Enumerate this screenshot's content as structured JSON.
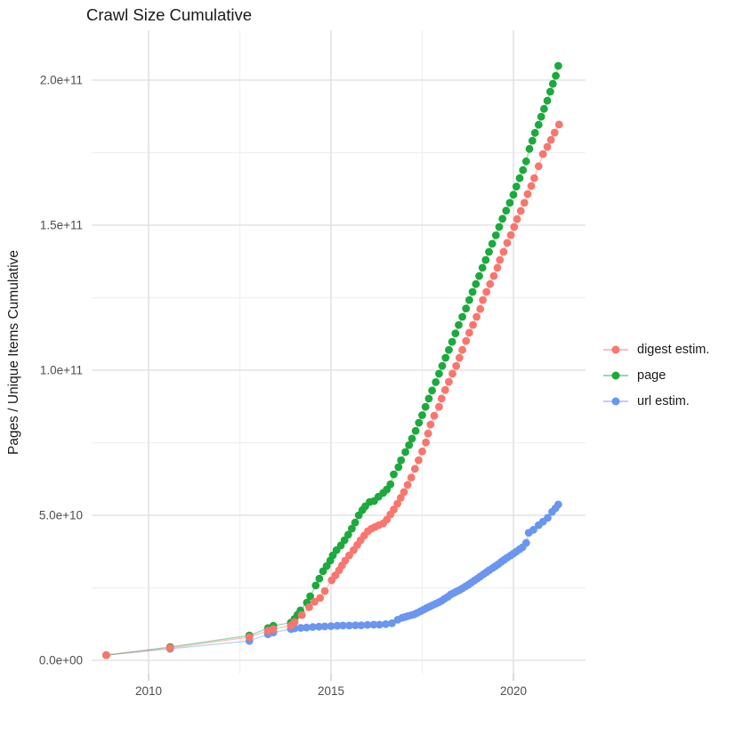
{
  "title": "Crawl Size Cumulative",
  "y_axis": {
    "title": "Pages / Unique Items Cumulative",
    "tick_labels": [
      "0.0e+00",
      "5.0e+10",
      "1.0e+11",
      "1.5e+11",
      "2.0e+11"
    ],
    "tick_values_e9": [
      0,
      50,
      100,
      150,
      200
    ]
  },
  "x_axis": {
    "tick_labels": [
      "2010",
      "2015",
      "2020"
    ],
    "tick_values": [
      2010,
      2015,
      2020
    ]
  },
  "legend": {
    "position": "right",
    "items": [
      {
        "label": "digest estim.",
        "color": "#F8766D"
      },
      {
        "label": "page",
        "color": "#1CA93D"
      },
      {
        "label": "url estim.",
        "color": "#6A96F0"
      }
    ]
  },
  "colors": {
    "grid_major": "#e3e3e3",
    "grid_minor": "#f0f0f0",
    "tick_mark": "#d2d2d2",
    "tick_text": "#4d4d4d",
    "text": "#1a1a1a",
    "background": "#ffffff"
  },
  "chart_data": {
    "type": "scatter",
    "title": "Crawl Size Cumulative",
    "xlabel": "",
    "ylabel": "Pages / Unique Items Cumulative",
    "value_unit": "items, values in billions (1e9)",
    "x_range": [
      2008.2,
      2022.0
    ],
    "y_range_e9": [
      -5,
      217
    ],
    "grid": true,
    "legend_position": "right",
    "series": [
      {
        "name": "digest estim.",
        "color": "#F8766D",
        "points": [
          [
            2008.84,
            1.8
          ],
          [
            2010.59,
            4.3
          ],
          [
            2012.76,
            8.0
          ],
          [
            2013.27,
            10.2
          ],
          [
            2013.42,
            10.8
          ],
          [
            2013.9,
            12.0
          ],
          [
            2014.0,
            13.2
          ],
          [
            2014.2,
            15.6
          ],
          [
            2014.4,
            18.3
          ],
          [
            2014.55,
            20.2
          ],
          [
            2014.7,
            21.5
          ],
          [
            2014.83,
            23.9
          ],
          [
            2015.02,
            27.6
          ],
          [
            2015.12,
            29.3
          ],
          [
            2015.22,
            31.0
          ],
          [
            2015.3,
            32.7
          ],
          [
            2015.39,
            34.4
          ],
          [
            2015.5,
            36.2
          ],
          [
            2015.62,
            38.0
          ],
          [
            2015.72,
            39.8
          ],
          [
            2015.81,
            41.4
          ],
          [
            2015.91,
            43.0
          ],
          [
            2016.01,
            44.5
          ],
          [
            2016.11,
            45.4
          ],
          [
            2016.21,
            46.0
          ],
          [
            2016.31,
            46.6
          ],
          [
            2016.43,
            47.2
          ],
          [
            2016.53,
            48.5
          ],
          [
            2016.63,
            50.3
          ],
          [
            2016.72,
            52.0
          ],
          [
            2016.82,
            54.0
          ],
          [
            2016.91,
            56.0
          ],
          [
            2017.0,
            58.0
          ],
          [
            2017.1,
            60.5
          ],
          [
            2017.2,
            63.0
          ],
          [
            2017.3,
            66.0
          ],
          [
            2017.4,
            69.0
          ],
          [
            2017.5,
            72.0
          ],
          [
            2017.6,
            75.1
          ],
          [
            2017.66,
            78.2
          ],
          [
            2017.73,
            81.3
          ],
          [
            2017.83,
            84.3
          ],
          [
            2017.96,
            87.4
          ],
          [
            2018.03,
            90.2
          ],
          [
            2018.13,
            93.2
          ],
          [
            2018.23,
            96.0
          ],
          [
            2018.33,
            98.8
          ],
          [
            2018.43,
            101.5
          ],
          [
            2018.52,
            104.3
          ],
          [
            2018.6,
            107.0
          ],
          [
            2018.7,
            110.1
          ],
          [
            2018.79,
            112.9
          ],
          [
            2018.89,
            115.6
          ],
          [
            2018.99,
            118.4
          ],
          [
            2019.09,
            121.1
          ],
          [
            2019.16,
            124.2
          ],
          [
            2019.26,
            127.0
          ],
          [
            2019.36,
            129.7
          ],
          [
            2019.46,
            132.5
          ],
          [
            2019.56,
            135.3
          ],
          [
            2019.63,
            138.0
          ],
          [
            2019.73,
            140.8
          ],
          [
            2019.83,
            143.9
          ],
          [
            2019.93,
            146.6
          ],
          [
            2020.02,
            149.4
          ],
          [
            2020.1,
            152.1
          ],
          [
            2020.2,
            154.9
          ],
          [
            2020.3,
            157.7
          ],
          [
            2020.39,
            160.7
          ],
          [
            2020.49,
            163.5
          ],
          [
            2020.57,
            166.2
          ],
          [
            2020.69,
            170.3
          ],
          [
            2020.81,
            174.5
          ],
          [
            2020.93,
            177.0
          ],
          [
            2021.03,
            179.4
          ],
          [
            2021.13,
            181.9
          ],
          [
            2021.25,
            184.7
          ]
        ]
      },
      {
        "name": "page",
        "color": "#1CA93D",
        "points": [
          [
            2008.84,
            1.8
          ],
          [
            2010.59,
            4.6
          ],
          [
            2012.76,
            8.6
          ],
          [
            2013.27,
            11.1
          ],
          [
            2013.42,
            11.9
          ],
          [
            2013.9,
            13.0
          ],
          [
            2014.0,
            14.3
          ],
          [
            2014.08,
            15.7
          ],
          [
            2014.16,
            17.2
          ],
          [
            2014.34,
            19.9
          ],
          [
            2014.43,
            22.1
          ],
          [
            2014.58,
            25.8
          ],
          [
            2014.68,
            28.2
          ],
          [
            2014.78,
            30.7
          ],
          [
            2014.88,
            32.5
          ],
          [
            2014.98,
            34.4
          ],
          [
            2015.05,
            36.2
          ],
          [
            2015.15,
            38.0
          ],
          [
            2015.27,
            39.6
          ],
          [
            2015.37,
            41.4
          ],
          [
            2015.47,
            43.3
          ],
          [
            2015.57,
            45.4
          ],
          [
            2015.66,
            47.5
          ],
          [
            2015.76,
            50.0
          ],
          [
            2015.86,
            51.8
          ],
          [
            2015.94,
            53.1
          ],
          [
            2016.06,
            54.6
          ],
          [
            2016.18,
            54.9
          ],
          [
            2016.3,
            56.4
          ],
          [
            2016.43,
            57.7
          ],
          [
            2016.53,
            58.9
          ],
          [
            2016.63,
            60.7
          ],
          [
            2016.72,
            64.1
          ],
          [
            2016.85,
            66.6
          ],
          [
            2016.92,
            69.0
          ],
          [
            2017.04,
            71.8
          ],
          [
            2017.14,
            74.2
          ],
          [
            2017.22,
            76.4
          ],
          [
            2017.32,
            79.1
          ],
          [
            2017.41,
            81.9
          ],
          [
            2017.5,
            84.5
          ],
          [
            2017.59,
            87.4
          ],
          [
            2017.68,
            90.2
          ],
          [
            2017.77,
            93.0
          ],
          [
            2017.87,
            95.9
          ],
          [
            2017.96,
            98.8
          ],
          [
            2018.05,
            101.5
          ],
          [
            2018.14,
            104.3
          ],
          [
            2018.23,
            107.0
          ],
          [
            2018.32,
            109.8
          ],
          [
            2018.41,
            112.7
          ],
          [
            2018.5,
            115.6
          ],
          [
            2018.6,
            118.4
          ],
          [
            2018.7,
            121.3
          ],
          [
            2018.79,
            124.2
          ],
          [
            2018.88,
            127.0
          ],
          [
            2018.97,
            129.7
          ],
          [
            2019.06,
            132.5
          ],
          [
            2019.15,
            135.3
          ],
          [
            2019.24,
            138.0
          ],
          [
            2019.33,
            140.8
          ],
          [
            2019.42,
            143.6
          ],
          [
            2019.52,
            146.5
          ],
          [
            2019.61,
            149.4
          ],
          [
            2019.7,
            152.2
          ],
          [
            2019.8,
            155.0
          ],
          [
            2019.9,
            157.7
          ],
          [
            2020.0,
            160.5
          ],
          [
            2020.08,
            163.3
          ],
          [
            2020.17,
            166.2
          ],
          [
            2020.26,
            169.0
          ],
          [
            2020.35,
            172.0
          ],
          [
            2020.44,
            176.3
          ],
          [
            2020.52,
            179.1
          ],
          [
            2020.59,
            181.8
          ],
          [
            2020.69,
            184.6
          ],
          [
            2020.76,
            187.4
          ],
          [
            2020.84,
            190.1
          ],
          [
            2020.93,
            192.9
          ],
          [
            2021.01,
            196.0
          ],
          [
            2021.08,
            198.7
          ],
          [
            2021.16,
            201.5
          ],
          [
            2021.23,
            204.9
          ]
        ]
      },
      {
        "name": "url estim.",
        "color": "#6A96F0",
        "points": [
          [
            2008.84,
            1.8
          ],
          [
            2010.59,
            4.0
          ],
          [
            2012.76,
            6.7
          ],
          [
            2013.27,
            9.0
          ],
          [
            2013.42,
            9.6
          ],
          [
            2013.9,
            10.8
          ],
          [
            2014.0,
            11.0
          ],
          [
            2014.17,
            11.2
          ],
          [
            2014.33,
            11.3
          ],
          [
            2014.5,
            11.5
          ],
          [
            2014.67,
            11.6
          ],
          [
            2014.83,
            11.7
          ],
          [
            2015.0,
            11.8
          ],
          [
            2015.17,
            11.9
          ],
          [
            2015.33,
            12.0
          ],
          [
            2015.5,
            12.0
          ],
          [
            2015.67,
            12.1
          ],
          [
            2015.83,
            12.1
          ],
          [
            2016.0,
            12.2
          ],
          [
            2016.17,
            12.3
          ],
          [
            2016.33,
            12.3
          ],
          [
            2016.5,
            12.5
          ],
          [
            2016.67,
            12.8
          ],
          [
            2016.83,
            14.0
          ],
          [
            2016.95,
            14.7
          ],
          [
            2017.04,
            15.0
          ],
          [
            2017.12,
            15.3
          ],
          [
            2017.21,
            15.6
          ],
          [
            2017.29,
            15.9
          ],
          [
            2017.37,
            16.4
          ],
          [
            2017.46,
            17.0
          ],
          [
            2017.54,
            17.5
          ],
          [
            2017.62,
            18.0
          ],
          [
            2017.7,
            18.5
          ],
          [
            2017.78,
            19.0
          ],
          [
            2017.87,
            19.5
          ],
          [
            2017.95,
            20.0
          ],
          [
            2018.03,
            20.5
          ],
          [
            2018.11,
            21.2
          ],
          [
            2018.2,
            21.9
          ],
          [
            2018.28,
            22.7
          ],
          [
            2018.36,
            23.2
          ],
          [
            2018.44,
            23.7
          ],
          [
            2018.52,
            24.2
          ],
          [
            2018.6,
            24.8
          ],
          [
            2018.69,
            25.5
          ],
          [
            2018.77,
            26.1
          ],
          [
            2018.85,
            26.8
          ],
          [
            2018.93,
            27.5
          ],
          [
            2019.01,
            28.2
          ],
          [
            2019.09,
            28.9
          ],
          [
            2019.18,
            29.7
          ],
          [
            2019.26,
            30.4
          ],
          [
            2019.34,
            31.1
          ],
          [
            2019.43,
            31.8
          ],
          [
            2019.51,
            32.5
          ],
          [
            2019.59,
            33.2
          ],
          [
            2019.67,
            34.0
          ],
          [
            2019.75,
            34.7
          ],
          [
            2019.83,
            35.4
          ],
          [
            2019.92,
            36.1
          ],
          [
            2020.0,
            36.8
          ],
          [
            2020.08,
            37.5
          ],
          [
            2020.17,
            38.3
          ],
          [
            2020.25,
            39.0
          ],
          [
            2020.35,
            40.5
          ],
          [
            2020.42,
            44.0
          ],
          [
            2020.55,
            45.0
          ],
          [
            2020.69,
            46.6
          ],
          [
            2020.81,
            47.8
          ],
          [
            2020.94,
            49.1
          ],
          [
            2021.06,
            51.2
          ],
          [
            2021.15,
            52.4
          ],
          [
            2021.23,
            53.7
          ]
        ]
      }
    ]
  }
}
